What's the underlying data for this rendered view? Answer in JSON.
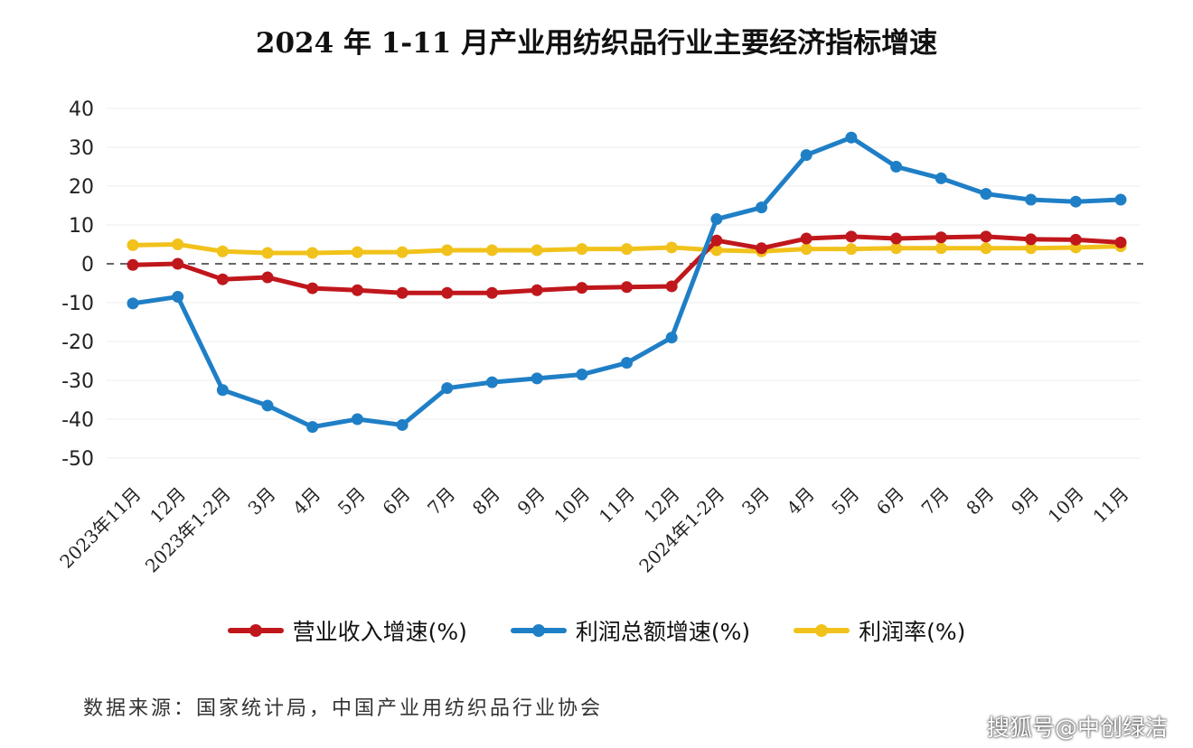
{
  "chart_data": {
    "type": "line",
    "title": "2024 年 1-11 月产业用纺织品行业主要经济指标增速",
    "xlabel": "",
    "ylabel": "",
    "ylim": [
      -50,
      40
    ],
    "yticks": [
      40,
      30,
      20,
      10,
      0,
      -10,
      -20,
      -30,
      -40,
      -50
    ],
    "grid": true,
    "legend_position": "bottom",
    "categories": [
      "2023年11月",
      "12月",
      "2023年1-2月",
      "3月",
      "4月",
      "5月",
      "6月",
      "7月",
      "8月",
      "9月",
      "10月",
      "11月",
      "12月",
      "2024年1-2月",
      "3月",
      "4月",
      "5月",
      "6月",
      "7月",
      "8月",
      "9月",
      "10月",
      "11月"
    ],
    "series": [
      {
        "name": "营业收入增速(%)",
        "color": "#c0171c",
        "values": [
          -0.3,
          0,
          -4,
          -3.5,
          -6.3,
          -6.8,
          -7.5,
          -7.5,
          -7.5,
          -6.8,
          -6.2,
          -6,
          -5.8,
          6,
          4,
          6.5,
          7,
          6.5,
          6.8,
          7,
          6.3,
          6.2,
          5.5
        ]
      },
      {
        "name": "利润总额增速(%)",
        "color": "#1f7fc6",
        "values": [
          -10.2,
          -8.5,
          -32.5,
          -36.5,
          -42,
          -40,
          -41.5,
          -32,
          -30.5,
          -29.5,
          -28.5,
          -25.5,
          -19,
          11.5,
          14.5,
          28,
          32.5,
          25,
          22,
          18,
          16.5,
          16,
          16.5
        ]
      },
      {
        "name": "利润率(%)",
        "color": "#f1c21b",
        "values": [
          4.8,
          5,
          3.2,
          2.8,
          2.8,
          3,
          3,
          3.5,
          3.5,
          3.5,
          3.8,
          3.8,
          4.2,
          3.5,
          3.2,
          3.8,
          3.8,
          4,
          4,
          4,
          4,
          4.2,
          4.5
        ]
      }
    ]
  },
  "source": "数据来源：国家统计局，中国产业用纺织品行业协会",
  "watermark": "搜狐号@中创绿洁"
}
